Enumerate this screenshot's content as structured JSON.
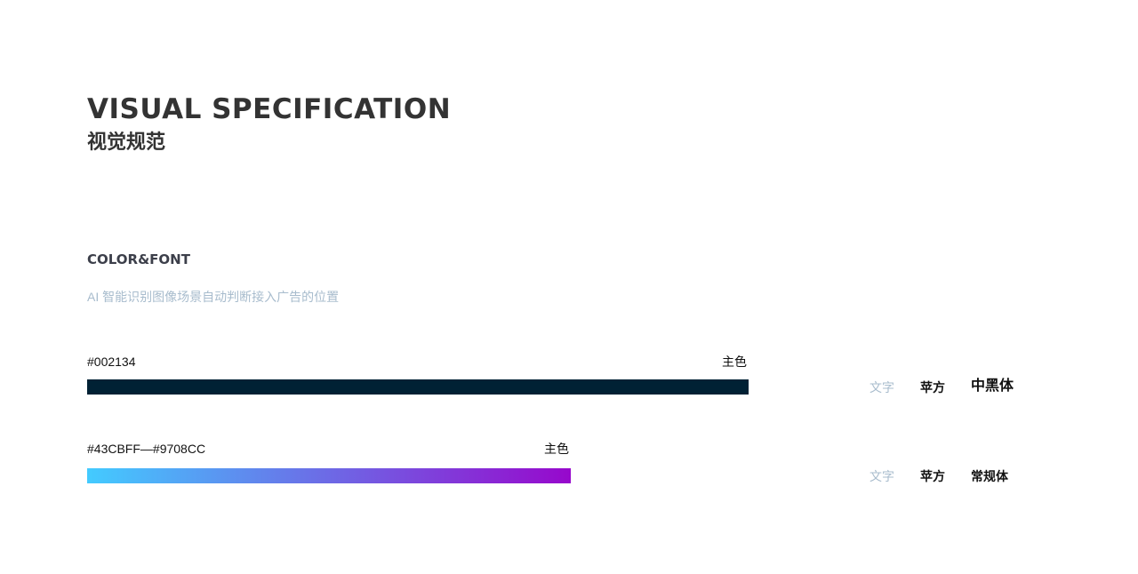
{
  "header": {
    "title_en": "VISUAL SPECIFICATION",
    "title_cn": "视觉规范"
  },
  "section": {
    "title": "COLOR&FONT",
    "subtitle": "AI 智能识别图像场景自动判断接入广告的位置"
  },
  "colors": [
    {
      "code": "#002134",
      "role": "主色",
      "fill_start": "#002134",
      "fill_end": "#002134"
    },
    {
      "code": "#43CBFF—#9708CC",
      "role": "主色",
      "fill_start": "#43CBFF",
      "fill_end": "#9708CC"
    }
  ],
  "fonts": [
    {
      "label": "文字",
      "family": "苹方",
      "weight": "中黑体"
    },
    {
      "label": "文字",
      "family": "苹方",
      "weight": "常规体"
    }
  ]
}
